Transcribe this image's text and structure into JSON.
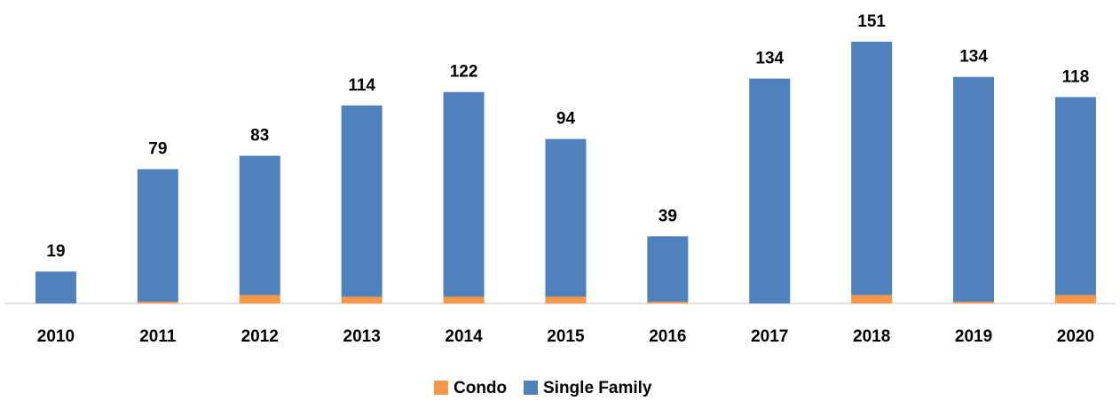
{
  "chart_data": {
    "type": "stacked-bar",
    "categories": [
      "2010",
      "2011",
      "2012",
      "2013",
      "2014",
      "2015",
      "2016",
      "2017",
      "2018",
      "2019",
      "2020"
    ],
    "series": [
      {
        "name": "Condo",
        "color": "#f79646",
        "values": [
          null,
          1,
          5,
          4,
          4,
          4,
          1,
          null,
          5,
          1,
          5
        ]
      },
      {
        "name": "Single Family",
        "color": "#4f81bd",
        "values": [
          19,
          79,
          83,
          114,
          122,
          94,
          39,
          134,
          151,
          134,
          118
        ]
      }
    ]
  }
}
